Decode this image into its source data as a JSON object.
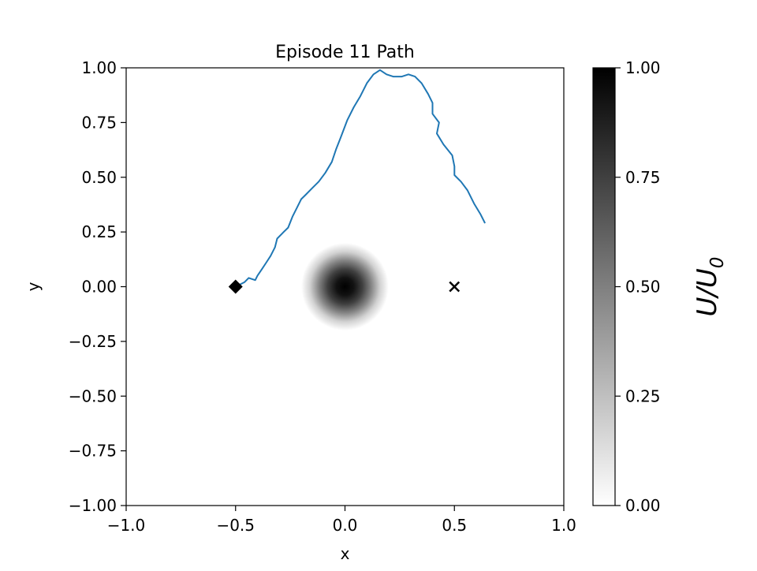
{
  "chart_data": {
    "type": "line",
    "title": "Episode 11 Path",
    "xlabel": "x",
    "ylabel": "y",
    "xlim": [
      -1.0,
      1.0
    ],
    "ylim": [
      -1.0,
      1.0
    ],
    "xticks": [
      -1.0,
      -0.5,
      0.0,
      0.5,
      1.0
    ],
    "xtick_labels": [
      "−1.0",
      "−0.5",
      "0.0",
      "0.5",
      "1.0"
    ],
    "yticks": [
      1.0,
      0.75,
      0.5,
      0.25,
      0.0,
      -0.25,
      -0.5,
      -0.75,
      -1.0
    ],
    "ytick_labels": [
      "1.00",
      "0.75",
      "0.50",
      "0.25",
      "0.00",
      "−0.25",
      "−0.50",
      "−0.75",
      "−1.00"
    ],
    "grid": false,
    "path_color": "#1f77b4",
    "background_field": {
      "type": "heatmap",
      "colormap": "gray_r",
      "center": [
        0.0,
        0.0
      ],
      "width": 0.2,
      "vmin": 0.0,
      "vmax": 1.0
    },
    "colorbar": {
      "label": "U/U",
      "label_subscript": "0",
      "ticks": [
        1.0,
        0.75,
        0.5,
        0.25,
        0.0
      ],
      "tick_labels": [
        "1.00",
        "0.75",
        "0.50",
        "0.25",
        "0.00"
      ]
    },
    "start_marker": {
      "x": -0.5,
      "y": 0.0,
      "shape": "diamond",
      "color": "#000000"
    },
    "goal_marker": {
      "x": 0.5,
      "y": 0.0,
      "shape": "x",
      "color": "#000000"
    },
    "series": [
      {
        "x": [
          -0.5,
          -0.46,
          -0.44,
          -0.41,
          -0.4,
          -0.38,
          -0.36,
          -0.34,
          -0.32,
          -0.31,
          -0.29,
          -0.28,
          -0.26,
          -0.24,
          -0.22,
          -0.2,
          -0.18,
          -0.15,
          -0.12,
          -0.09,
          -0.06,
          -0.04,
          -0.02,
          0.01,
          0.04,
          0.07,
          0.1,
          0.13,
          0.16,
          0.19,
          0.22,
          0.26,
          0.29,
          0.32,
          0.35,
          0.38,
          0.4,
          0.4,
          0.43,
          0.42,
          0.45,
          0.49,
          0.5,
          0.5,
          0.53,
          0.56,
          0.59,
          0.62,
          0.64
        ],
        "y": [
          0.0,
          0.02,
          0.04,
          0.03,
          0.05,
          0.08,
          0.11,
          0.14,
          0.18,
          0.22,
          0.24,
          0.25,
          0.27,
          0.32,
          0.36,
          0.4,
          0.42,
          0.45,
          0.48,
          0.52,
          0.57,
          0.63,
          0.68,
          0.76,
          0.82,
          0.87,
          0.93,
          0.97,
          0.99,
          0.97,
          0.96,
          0.96,
          0.97,
          0.96,
          0.93,
          0.88,
          0.84,
          0.79,
          0.75,
          0.7,
          0.65,
          0.6,
          0.55,
          0.51,
          0.48,
          0.44,
          0.38,
          0.33,
          0.29
        ]
      }
    ]
  }
}
